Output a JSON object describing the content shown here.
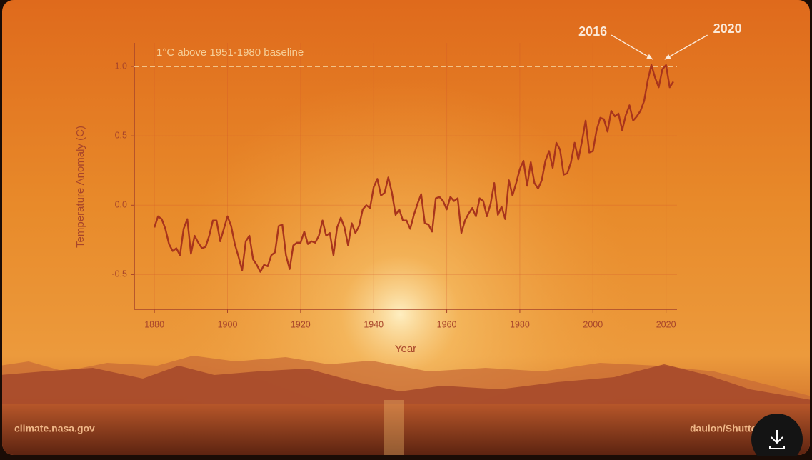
{
  "chart_data": {
    "type": "line",
    "x": [
      1880,
      1881,
      1882,
      1883,
      1884,
      1885,
      1886,
      1887,
      1888,
      1889,
      1890,
      1891,
      1892,
      1893,
      1894,
      1895,
      1896,
      1897,
      1898,
      1899,
      1900,
      1901,
      1902,
      1903,
      1904,
      1905,
      1906,
      1907,
      1908,
      1909,
      1910,
      1911,
      1912,
      1913,
      1914,
      1915,
      1916,
      1917,
      1918,
      1919,
      1920,
      1921,
      1922,
      1923,
      1924,
      1925,
      1926,
      1927,
      1928,
      1929,
      1930,
      1931,
      1932,
      1933,
      1934,
      1935,
      1936,
      1937,
      1938,
      1939,
      1940,
      1941,
      1942,
      1943,
      1944,
      1945,
      1946,
      1947,
      1948,
      1949,
      1950,
      1951,
      1952,
      1953,
      1954,
      1955,
      1956,
      1957,
      1958,
      1959,
      1960,
      1961,
      1962,
      1963,
      1964,
      1965,
      1966,
      1967,
      1968,
      1969,
      1970,
      1971,
      1972,
      1973,
      1974,
      1975,
      1976,
      1977,
      1978,
      1979,
      1980,
      1981,
      1982,
      1983,
      1984,
      1985,
      1986,
      1987,
      1988,
      1989,
      1990,
      1991,
      1992,
      1993,
      1994,
      1995,
      1996,
      1997,
      1998,
      1999,
      2000,
      2001,
      2002,
      2003,
      2004,
      2005,
      2006,
      2007,
      2008,
      2009,
      2010,
      2011,
      2012,
      2013,
      2014,
      2015,
      2016,
      2017,
      2018,
      2019,
      2020,
      2021,
      2022
    ],
    "values": [
      -0.16,
      -0.08,
      -0.1,
      -0.17,
      -0.28,
      -0.33,
      -0.31,
      -0.36,
      -0.17,
      -0.1,
      -0.35,
      -0.22,
      -0.27,
      -0.31,
      -0.3,
      -0.22,
      -0.11,
      -0.11,
      -0.26,
      -0.17,
      -0.08,
      -0.15,
      -0.28,
      -0.37,
      -0.47,
      -0.26,
      -0.22,
      -0.39,
      -0.43,
      -0.48,
      -0.43,
      -0.44,
      -0.36,
      -0.34,
      -0.15,
      -0.14,
      -0.36,
      -0.46,
      -0.29,
      -0.27,
      -0.27,
      -0.19,
      -0.28,
      -0.26,
      -0.27,
      -0.22,
      -0.11,
      -0.22,
      -0.2,
      -0.36,
      -0.16,
      -0.09,
      -0.16,
      -0.29,
      -0.13,
      -0.2,
      -0.15,
      -0.03,
      0.0,
      -0.02,
      0.13,
      0.19,
      0.07,
      0.09,
      0.2,
      0.09,
      -0.07,
      -0.03,
      -0.11,
      -0.11,
      -0.17,
      -0.07,
      0.01,
      0.08,
      -0.13,
      -0.14,
      -0.19,
      0.05,
      0.06,
      0.03,
      -0.03,
      0.06,
      0.03,
      0.05,
      -0.2,
      -0.11,
      -0.06,
      -0.02,
      -0.08,
      0.05,
      0.03,
      -0.08,
      0.01,
      0.16,
      -0.07,
      -0.01,
      -0.1,
      0.18,
      0.07,
      0.16,
      0.26,
      0.32,
      0.14,
      0.31,
      0.16,
      0.12,
      0.18,
      0.32,
      0.39,
      0.27,
      0.45,
      0.4,
      0.22,
      0.23,
      0.31,
      0.45,
      0.33,
      0.46,
      0.61,
      0.38,
      0.39,
      0.54,
      0.63,
      0.62,
      0.53,
      0.68,
      0.64,
      0.66,
      0.54,
      0.65,
      0.72,
      0.61,
      0.64,
      0.68,
      0.75,
      0.9,
      1.01,
      0.92,
      0.85,
      0.98,
      1.01,
      0.85,
      0.89
    ],
    "color": "#a8341c",
    "xlabel": "Year",
    "ylabel": "Temperature Anomaly (C)",
    "xlim": [
      1874.5,
      2023
    ],
    "ylim": [
      -0.75,
      1.17
    ],
    "xticks": [
      1880,
      1900,
      1920,
      1940,
      1960,
      1980,
      2000,
      2020
    ],
    "yticks": [
      -0.5,
      {
        "value": 0,
        "label": "0.0"
      },
      0.5,
      {
        "value": 1,
        "label": "1.0"
      }
    ],
    "grid": true,
    "reference_line": {
      "value": 1,
      "label": "1°C above 1951-1980 baseline"
    },
    "annotations": [
      {
        "text": "2016",
        "x": 2016
      },
      {
        "text": "2020",
        "x": 2020
      }
    ]
  },
  "credits": {
    "source": "climate.nasa.gov",
    "photo": "daulon/Shutterstock"
  }
}
